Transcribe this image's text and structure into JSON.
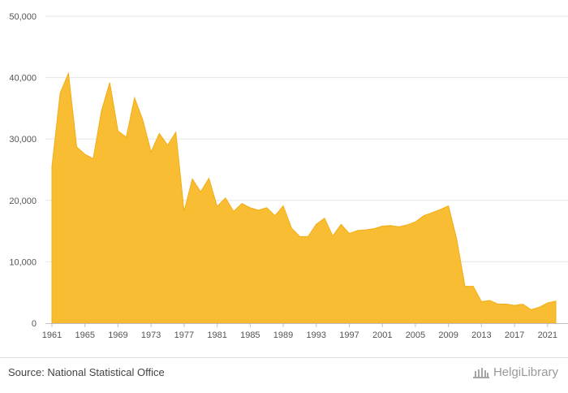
{
  "chart_data": {
    "type": "area",
    "title": "",
    "xlabel": "",
    "ylabel": "",
    "ylim": [
      0,
      50000
    ],
    "yticks": [
      "0",
      "10,000",
      "20,000",
      "30,000",
      "40,000",
      "50,000"
    ],
    "yticks_values": [
      0,
      10000,
      20000,
      30000,
      40000,
      50000
    ],
    "xticks": [
      "1961",
      "1965",
      "1969",
      "1973",
      "1977",
      "1981",
      "1985",
      "1989",
      "1993",
      "1997",
      "2001",
      "2005",
      "2009",
      "2013",
      "2017",
      "2021"
    ],
    "grid": true,
    "legend": "none",
    "color": "#f9bd33",
    "x": [
      1961,
      1962,
      1963,
      1964,
      1965,
      1966,
      1967,
      1968,
      1969,
      1970,
      1971,
      1972,
      1973,
      1974,
      1975,
      1976,
      1977,
      1978,
      1979,
      1980,
      1981,
      1982,
      1983,
      1984,
      1985,
      1986,
      1987,
      1988,
      1989,
      1990,
      1991,
      1992,
      1993,
      1994,
      1995,
      1996,
      1997,
      1998,
      1999,
      2000,
      2001,
      2002,
      2003,
      2004,
      2005,
      2006,
      2007,
      2008,
      2009,
      2010,
      2011,
      2012,
      2013,
      2014,
      2015,
      2016,
      2017,
      2018,
      2019,
      2020,
      2021,
      2022
    ],
    "values": [
      25500,
      37500,
      40700,
      28700,
      27500,
      26800,
      34600,
      39200,
      31300,
      30300,
      36700,
      33100,
      27900,
      30900,
      29000,
      31100,
      18200,
      23500,
      21400,
      23600,
      19000,
      20400,
      18200,
      19500,
      18800,
      18400,
      18800,
      17500,
      19100,
      15500,
      14100,
      14100,
      16100,
      17100,
      14200,
      16100,
      14600,
      15100,
      15200,
      15400,
      15800,
      15900,
      15700,
      16000,
      16500,
      17500,
      18000,
      18500,
      19100,
      13700,
      6000,
      6000,
      3500,
      3700,
      3100,
      3100,
      2900,
      3100,
      2200,
      2600,
      3300,
      3600
    ]
  },
  "footer": {
    "source": "Source: National Statistical Office",
    "brand": "HelgiLibrary"
  }
}
